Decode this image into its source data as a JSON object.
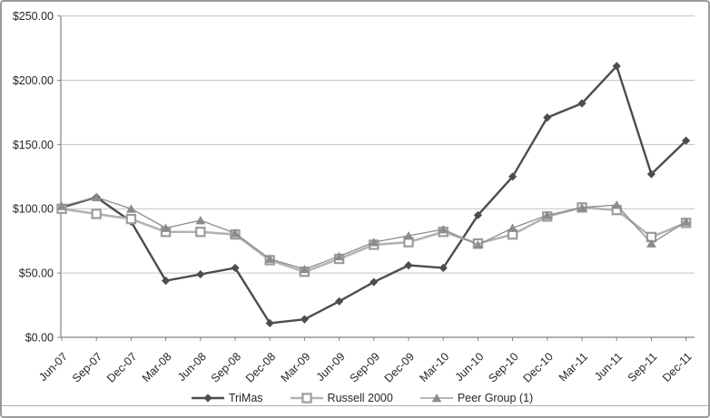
{
  "chart_data": {
    "type": "line",
    "title": "",
    "categories": [
      "Jun-07",
      "Sep-07",
      "Dec-07",
      "Mar-08",
      "Jun-08",
      "Sep-08",
      "Dec-08",
      "Mar-09",
      "Jun-09",
      "Sep-09",
      "Dec-09",
      "Mar-10",
      "Jun-10",
      "Sep-10",
      "Dec-10",
      "Mar-11",
      "Jun-11",
      "Sep-11",
      "Dec-11"
    ],
    "series": [
      {
        "name": "TriMas",
        "marker": "diamond",
        "color": "#4d4d4d",
        "line_width": 2.4,
        "values": [
          101,
          109,
          90,
          44,
          49,
          54,
          11,
          14,
          28,
          43,
          56,
          54,
          95,
          125,
          171,
          182,
          211,
          127,
          153
        ]
      },
      {
        "name": "Russell 2000",
        "marker": "square-open",
        "color": "#b3b3b3",
        "marker_border": "#9c9c9c",
        "line_width": 2.6,
        "values": [
          100,
          96,
          92,
          82,
          82,
          80,
          60,
          51,
          61,
          72,
          74,
          82,
          73,
          80,
          94,
          101,
          99,
          78,
          89
        ]
      },
      {
        "name": "Peer Group (1)",
        "marker": "triangle",
        "color": "#8c8c8c",
        "line_width": 1.3,
        "values": [
          102,
          109,
          100,
          85,
          91,
          81,
          61,
          53,
          63,
          74,
          79,
          84,
          72,
          85,
          95,
          101,
          103,
          73,
          90
        ]
      }
    ],
    "ylim": [
      0,
      250
    ],
    "y_tick_interval": 50,
    "y_tick_labels": [
      "$0.00",
      "$50.00",
      "$100.00",
      "$150.00",
      "$200.00",
      "$250.00"
    ],
    "xlabel": "",
    "ylabel": "",
    "grid": "horizontal",
    "legend_position": "bottom",
    "colors": {
      "axis": "#808080",
      "gridline": "#c3c3c3",
      "text": "#262626",
      "frame_border": "#9a9a9a"
    }
  }
}
